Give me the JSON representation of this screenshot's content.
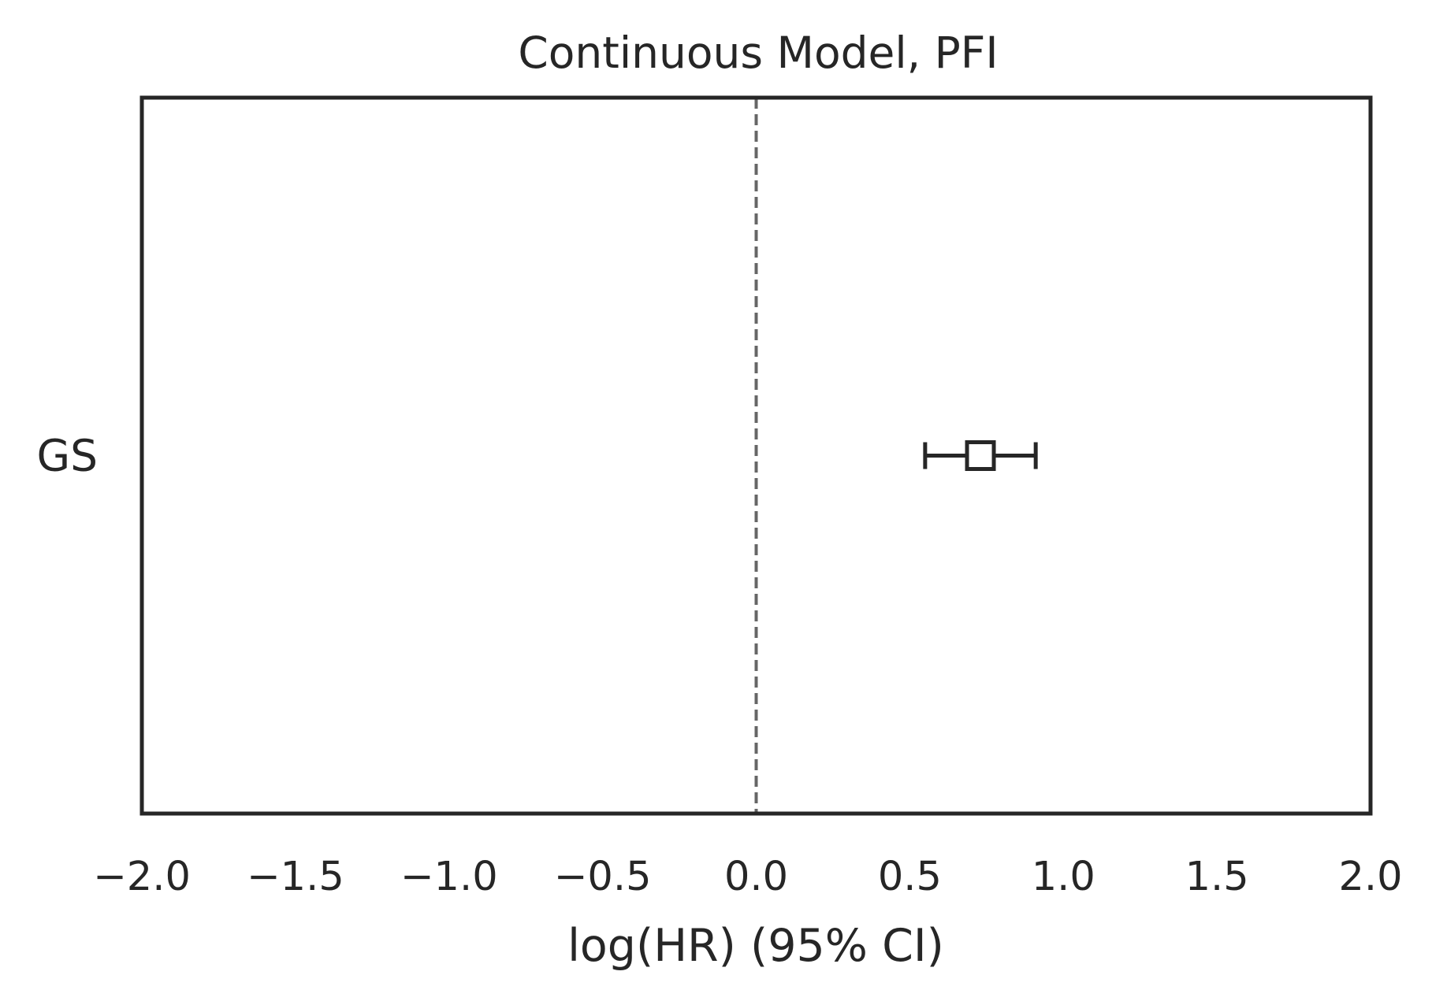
{
  "chart_data": {
    "type": "forest",
    "title": "Continuous Model, PFI",
    "xlabel": "log(HR) (95% CI)",
    "ylabel": "",
    "xlim": [
      -2.0,
      2.0
    ],
    "xticks": [
      -2.0,
      -1.5,
      -1.0,
      -0.5,
      0.0,
      0.5,
      1.0,
      1.5,
      2.0
    ],
    "xtick_labels": [
      "−2.0",
      "−1.5",
      "−1.0",
      "−0.5",
      "0.0",
      "0.5",
      "1.0",
      "1.5",
      "2.0"
    ],
    "reference_line": 0.0,
    "grid": false,
    "categories": [
      "GS"
    ],
    "points": [
      {
        "label": "GS",
        "estimate": 0.73,
        "ci_low": 0.55,
        "ci_high": 0.91
      }
    ],
    "colors": {
      "frame": "#262626",
      "marker": "#262626",
      "reference_line": "#666666",
      "text": "#262626"
    }
  }
}
